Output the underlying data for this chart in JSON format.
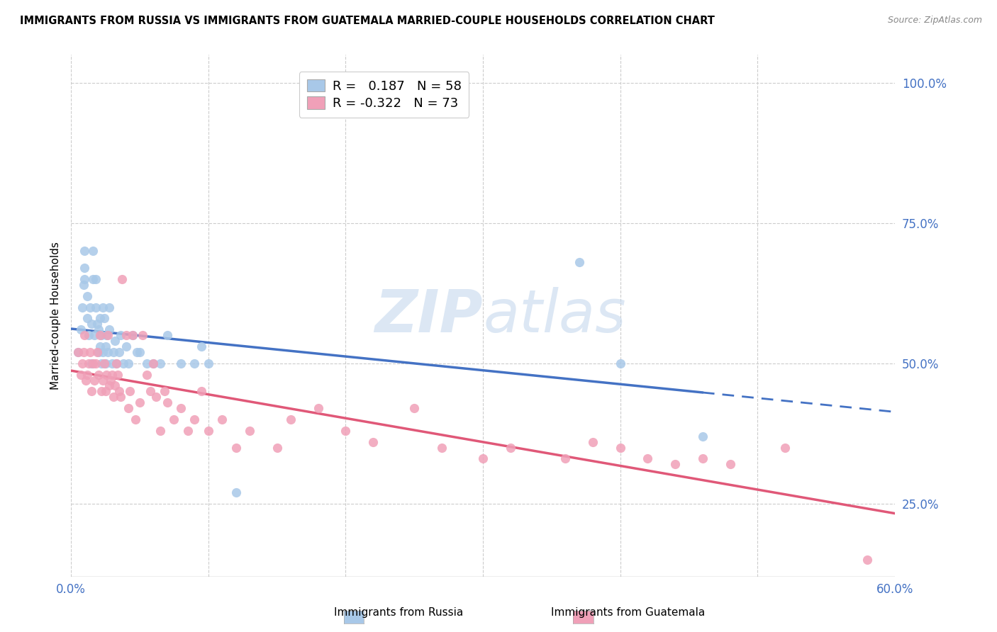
{
  "title": "IMMIGRANTS FROM RUSSIA VS IMMIGRANTS FROM GUATEMALA MARRIED-COUPLE HOUSEHOLDS CORRELATION CHART",
  "source": "Source: ZipAtlas.com",
  "ylabel": "Married-couple Households",
  "yticks": [
    "25.0%",
    "50.0%",
    "75.0%",
    "100.0%"
  ],
  "ytick_vals": [
    0.25,
    0.5,
    0.75,
    1.0
  ],
  "xmin": 0.0,
  "xmax": 0.6,
  "ymin": 0.12,
  "ymax": 1.05,
  "legend_russia_R": "0.187",
  "legend_russia_N": "58",
  "legend_guatemala_R": "-0.322",
  "legend_guatemala_N": "73",
  "color_russia": "#a8c8e8",
  "color_guatemala": "#f0a0b8",
  "color_russia_line": "#4472c4",
  "color_guatemala_line": "#e05878",
  "watermark_color": "#c5d8ed",
  "russia_scatter_x": [
    0.005,
    0.007,
    0.008,
    0.009,
    0.01,
    0.01,
    0.01,
    0.012,
    0.012,
    0.013,
    0.014,
    0.015,
    0.015,
    0.016,
    0.016,
    0.017,
    0.018,
    0.018,
    0.019,
    0.02,
    0.02,
    0.021,
    0.021,
    0.022,
    0.022,
    0.023,
    0.023,
    0.024,
    0.025,
    0.025,
    0.026,
    0.027,
    0.028,
    0.028,
    0.03,
    0.031,
    0.032,
    0.033,
    0.035,
    0.036,
    0.038,
    0.04,
    0.042,
    0.045,
    0.048,
    0.05,
    0.055,
    0.06,
    0.065,
    0.07,
    0.08,
    0.09,
    0.095,
    0.1,
    0.12,
    0.37,
    0.4,
    0.46
  ],
  "russia_scatter_y": [
    0.52,
    0.56,
    0.6,
    0.64,
    0.67,
    0.7,
    0.65,
    0.58,
    0.62,
    0.55,
    0.6,
    0.57,
    0.5,
    0.65,
    0.7,
    0.55,
    0.6,
    0.65,
    0.57,
    0.52,
    0.56,
    0.53,
    0.58,
    0.5,
    0.55,
    0.6,
    0.52,
    0.58,
    0.53,
    0.5,
    0.55,
    0.52,
    0.6,
    0.56,
    0.5,
    0.52,
    0.54,
    0.5,
    0.52,
    0.55,
    0.5,
    0.53,
    0.5,
    0.55,
    0.52,
    0.52,
    0.5,
    0.5,
    0.5,
    0.55,
    0.5,
    0.5,
    0.53,
    0.5,
    0.27,
    0.68,
    0.5,
    0.37
  ],
  "guatemala_scatter_x": [
    0.005,
    0.007,
    0.008,
    0.009,
    0.01,
    0.011,
    0.012,
    0.013,
    0.014,
    0.015,
    0.016,
    0.017,
    0.018,
    0.019,
    0.02,
    0.021,
    0.022,
    0.023,
    0.024,
    0.025,
    0.026,
    0.027,
    0.028,
    0.029,
    0.03,
    0.031,
    0.032,
    0.033,
    0.034,
    0.035,
    0.036,
    0.037,
    0.04,
    0.042,
    0.043,
    0.045,
    0.047,
    0.05,
    0.052,
    0.055,
    0.058,
    0.06,
    0.062,
    0.065,
    0.068,
    0.07,
    0.075,
    0.08,
    0.085,
    0.09,
    0.095,
    0.1,
    0.11,
    0.12,
    0.13,
    0.15,
    0.16,
    0.18,
    0.2,
    0.22,
    0.25,
    0.27,
    0.3,
    0.32,
    0.36,
    0.38,
    0.4,
    0.42,
    0.44,
    0.46,
    0.48,
    0.52,
    0.58
  ],
  "guatemala_scatter_y": [
    0.52,
    0.48,
    0.5,
    0.52,
    0.55,
    0.47,
    0.48,
    0.5,
    0.52,
    0.45,
    0.5,
    0.47,
    0.5,
    0.52,
    0.48,
    0.55,
    0.45,
    0.47,
    0.5,
    0.45,
    0.48,
    0.55,
    0.46,
    0.47,
    0.48,
    0.44,
    0.46,
    0.5,
    0.48,
    0.45,
    0.44,
    0.65,
    0.55,
    0.42,
    0.45,
    0.55,
    0.4,
    0.43,
    0.55,
    0.48,
    0.45,
    0.5,
    0.44,
    0.38,
    0.45,
    0.43,
    0.4,
    0.42,
    0.38,
    0.4,
    0.45,
    0.38,
    0.4,
    0.35,
    0.38,
    0.35,
    0.4,
    0.42,
    0.38,
    0.36,
    0.42,
    0.35,
    0.33,
    0.35,
    0.33,
    0.36,
    0.35,
    0.33,
    0.32,
    0.33,
    0.32,
    0.35,
    0.15
  ]
}
